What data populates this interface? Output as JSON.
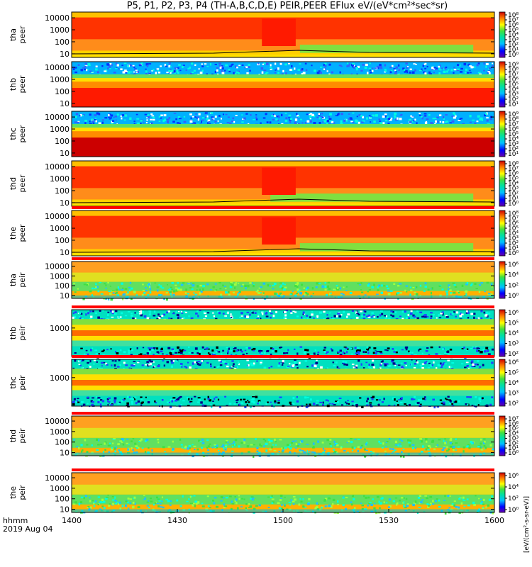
{
  "title": "P5, P1, P2, P3, P4 (TH-A,B,C,D,E) PEIR,PEER EFlux eV/(eV*cm²*sec*sr)",
  "time_axis": {
    "label_line1": "hhmm",
    "label_line2": "2019 Aug 04",
    "ticks": [
      "1400",
      "1430",
      "1500",
      "1530",
      "1600"
    ]
  },
  "colorbar_unit_label": "[eV/(cm²-s-sr-eV)]",
  "chart_data": [
    {
      "type": "heatmap",
      "panel": "tha peer",
      "ylabel_line1": "tha",
      "ylabel_line2": "peer",
      "yscale": "log",
      "ylim": [
        5,
        30000
      ],
      "yticks": [
        "10",
        "100",
        "1000",
        "10000"
      ],
      "colorbar_ticks": [
        "10⁰",
        "10¹",
        "10²",
        "10³",
        "10⁴",
        "10⁵",
        "10⁶",
        "10⁷",
        "10⁸"
      ],
      "x": [
        "14:00",
        "16:00"
      ],
      "description_color": "orange-red core with green low-energy after ~15:05"
    },
    {
      "type": "heatmap",
      "panel": "thb peer",
      "ylabel_line1": "thb",
      "ylabel_line2": "peer",
      "yscale": "log",
      "ylim": [
        5,
        30000
      ],
      "yticks": [
        "10",
        "100",
        "1000",
        "10000"
      ],
      "colorbar_ticks": [
        "10¹",
        "10²",
        "10³",
        "10⁴",
        "10⁵",
        "10⁶",
        "10⁷",
        "10⁸",
        "10⁹"
      ],
      "x": [
        "14:00",
        "16:00"
      ]
    },
    {
      "type": "heatmap",
      "panel": "thc peer",
      "ylabel_line1": "thc",
      "ylabel_line2": "peer",
      "yscale": "log",
      "ylim": [
        5,
        30000
      ],
      "yticks": [
        "10",
        "100",
        "1000",
        "10000"
      ],
      "colorbar_ticks": [
        "10¹",
        "10²",
        "10³",
        "10⁴",
        "10⁵",
        "10⁶",
        "10⁷",
        "10⁸",
        "10⁹"
      ],
      "x": [
        "14:00",
        "16:00"
      ]
    },
    {
      "type": "heatmap",
      "panel": "thd peer",
      "ylabel_line1": "thd",
      "ylabel_line2": "peer",
      "yscale": "log",
      "ylim": [
        5,
        30000
      ],
      "yticks": [
        "10",
        "100",
        "1000",
        "10000"
      ],
      "colorbar_ticks": [
        "10⁰",
        "10¹",
        "10²",
        "10³",
        "10⁴",
        "10⁵",
        "10⁶",
        "10⁷",
        "10⁸"
      ],
      "x": [
        "14:00",
        "16:00"
      ]
    },
    {
      "type": "heatmap",
      "panel": "the peer",
      "ylabel_line1": "the",
      "ylabel_line2": "peer",
      "yscale": "log",
      "ylim": [
        5,
        30000
      ],
      "yticks": [
        "10",
        "100",
        "1000",
        "10000"
      ],
      "colorbar_ticks": [
        "10⁰",
        "10¹",
        "10²",
        "10³",
        "10⁴",
        "10⁵",
        "10⁶",
        "10⁷",
        "10⁸"
      ],
      "x": [
        "14:00",
        "16:00"
      ]
    },
    {
      "type": "heatmap",
      "panel": "tha peir",
      "ylabel_line1": "tha",
      "ylabel_line2": "peir",
      "yscale": "log",
      "ylim": [
        5,
        30000
      ],
      "yticks": [
        "10",
        "100",
        "1000",
        "10000"
      ],
      "colorbar_ticks": [
        "10⁰",
        "10²",
        "10⁴",
        "10⁶"
      ],
      "x": [
        "14:00",
        "16:00"
      ]
    },
    {
      "type": "heatmap",
      "panel": "thb peir",
      "ylabel_line1": "thb",
      "ylabel_line2": "peir",
      "yscale": "log",
      "ylim": [
        5,
        30000
      ],
      "yticks": [
        "1000"
      ],
      "colorbar_ticks": [
        "10²",
        "10³",
        "10⁴",
        "10⁵",
        "10⁶"
      ],
      "x": [
        "14:00",
        "16:00"
      ]
    },
    {
      "type": "heatmap",
      "panel": "thc peir",
      "ylabel_line1": "thc",
      "ylabel_line2": "peir",
      "yscale": "log",
      "ylim": [
        5,
        30000
      ],
      "yticks": [
        "1000"
      ],
      "colorbar_ticks": [
        "10²",
        "10³",
        "10⁴",
        "10⁵",
        "10⁶"
      ],
      "x": [
        "14:00",
        "16:00"
      ]
    },
    {
      "type": "heatmap",
      "panel": "thd peir",
      "ylabel_line1": "thd",
      "ylabel_line2": "peir",
      "yscale": "log",
      "ylim": [
        5,
        30000
      ],
      "yticks": [
        "10",
        "100",
        "1000",
        "10000"
      ],
      "colorbar_ticks": [
        "10⁰",
        "10¹",
        "10²",
        "10³",
        "10⁴",
        "10⁵",
        "10⁶",
        "10⁷"
      ],
      "x": [
        "14:00",
        "16:00"
      ]
    },
    {
      "type": "heatmap",
      "panel": "the peir",
      "ylabel_line1": "the",
      "ylabel_line2": "peir",
      "yscale": "log",
      "ylim": [
        5,
        30000
      ],
      "yticks": [
        "10",
        "100",
        "1000",
        "10000"
      ],
      "colorbar_ticks": [
        "10⁰",
        "10²",
        "10⁴",
        "10⁶"
      ],
      "x": [
        "14:00",
        "16:00"
      ]
    }
  ]
}
